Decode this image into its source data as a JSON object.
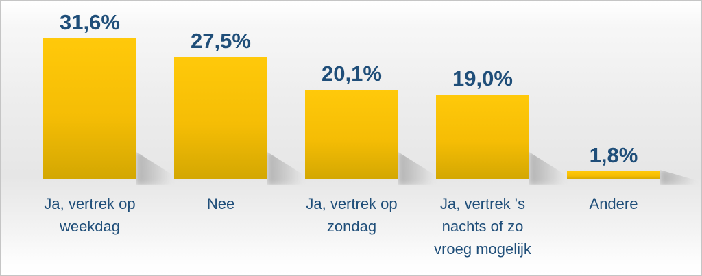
{
  "chart_data": {
    "type": "bar",
    "categories": [
      "Ja, vertrek op\nweekdag",
      "Nee",
      "Ja, vertrek op\nzondag",
      "Ja, vertrek 's\nnachts of zo\nvroeg mogelijk",
      "Andere"
    ],
    "values": [
      31.6,
      27.5,
      20.1,
      19.0,
      1.8
    ],
    "value_labels": [
      "31,6%",
      "27,5%",
      "20,1%",
      "19,0%",
      "1,8%"
    ],
    "decimal_separator": ",",
    "unit": "%",
    "axis": "none",
    "grid": false,
    "legend": false,
    "data_labels_position": "above-bars",
    "colors": {
      "bar_top": "#ffc90a",
      "bar_bottom": "#d3a702",
      "label_text": "#1f4e79",
      "frame_border": "#c5c5c5",
      "background_mid": "#e6e6e6"
    }
  }
}
